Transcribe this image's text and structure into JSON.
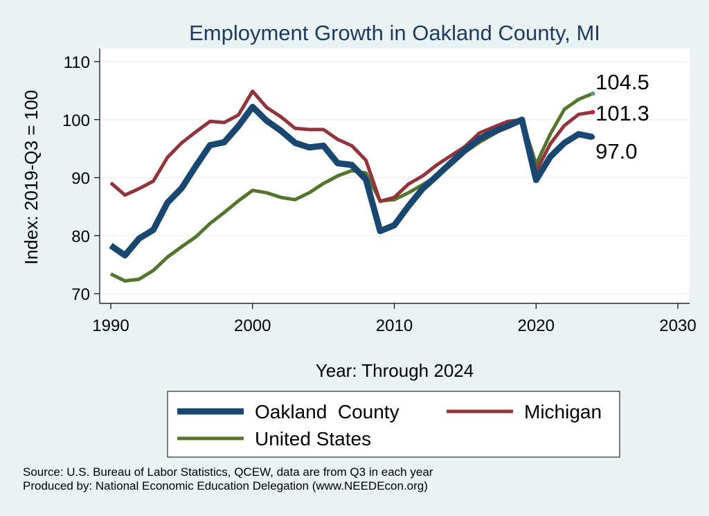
{
  "chart_data": {
    "type": "line",
    "title": "Employment Growth in Oakland County, MI",
    "xlabel": "Year: Through 2024",
    "ylabel": "Index: 2019-Q3 = 100",
    "xlim": [
      1990,
      2030
    ],
    "ylim": [
      70,
      110
    ],
    "xticks": [
      1990,
      2000,
      2010,
      2020,
      2030
    ],
    "yticks": [
      70,
      80,
      90,
      100,
      110
    ],
    "x": [
      1990,
      1991,
      1992,
      1993,
      1994,
      1995,
      1996,
      1997,
      1998,
      1999,
      2000,
      2001,
      2002,
      2003,
      2004,
      2005,
      2006,
      2007,
      2008,
      2009,
      2010,
      2011,
      2012,
      2013,
      2014,
      2015,
      2016,
      2017,
      2018,
      2019,
      2020,
      2021,
      2022,
      2023,
      2024
    ],
    "series": [
      {
        "name": "Oakland  County",
        "color": "#1a476f",
        "width": 9,
        "end_label": "97.0",
        "values": [
          78.3,
          76.6,
          79.5,
          81.0,
          85.7,
          88.2,
          92.0,
          95.6,
          96.1,
          98.9,
          102.2,
          99.8,
          98.1,
          96.0,
          95.2,
          95.5,
          92.5,
          92.2,
          89.7,
          80.8,
          81.8,
          85.1,
          88.1,
          90.3,
          92.6,
          94.8,
          96.7,
          97.9,
          98.9,
          100.0,
          89.6,
          93.6,
          96.0,
          97.5,
          97.0
        ]
      },
      {
        "name": "Michigan",
        "color": "#90353b",
        "width": 5,
        "end_label": "101.3",
        "values": [
          89.1,
          87.0,
          88.1,
          89.4,
          93.5,
          96.0,
          97.9,
          99.7,
          99.5,
          100.8,
          104.9,
          102.1,
          100.5,
          98.5,
          98.3,
          98.3,
          96.6,
          95.5,
          93.0,
          85.9,
          86.6,
          88.9,
          90.3,
          92.2,
          93.8,
          95.4,
          97.7,
          98.7,
          99.7,
          100.0,
          91.1,
          95.8,
          99.0,
          100.9,
          101.3
        ]
      },
      {
        "name": "United States",
        "color": "#55752f",
        "width": 5,
        "end_label": "104.5",
        "values": [
          73.4,
          72.2,
          72.5,
          74.0,
          76.3,
          78.1,
          79.8,
          82.1,
          84.0,
          86.0,
          87.8,
          87.4,
          86.6,
          86.2,
          87.4,
          89.0,
          90.3,
          91.2,
          90.8,
          86.0,
          86.2,
          87.4,
          88.8,
          90.3,
          92.2,
          94.4,
          96.1,
          97.5,
          98.9,
          100.0,
          92.3,
          97.5,
          101.8,
          103.5,
          104.5
        ]
      }
    ],
    "legend": {
      "position": "bottom"
    }
  },
  "source_lines": [
    "Source: U.S. Bureau of Labor Statistics, QCEW, data are from Q3 in each year",
    "Produced by: National Economic Education Delegation (www.NEEDEcon.org)"
  ]
}
